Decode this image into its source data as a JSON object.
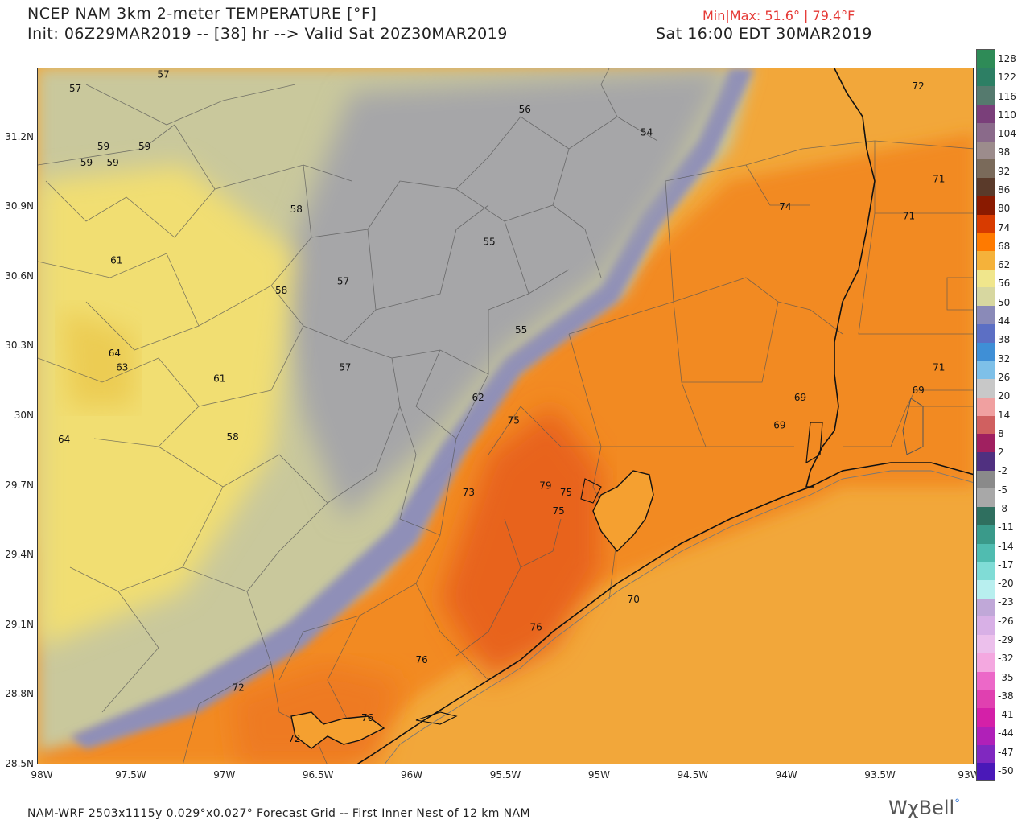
{
  "header": {
    "title": "NCEP NAM 3km 2-meter TEMPERATURE [°F]",
    "init_line": "Init: 06Z29MAR2019 -- [38] hr --> Valid Sat 20Z30MAR2019",
    "local_time": "Sat 16:00 EDT 30MAR2019",
    "minmax": "Min|Max: 51.6° | 79.4°F"
  },
  "footer": "NAM-WRF 2503x1115y 0.029°x0.027° Forecast Grid -- First Inner Nest of 12 km NAM",
  "brand": "WχBell",
  "map": {
    "lon_labels": [
      "98W",
      "97.5W",
      "97W",
      "96.5W",
      "96W",
      "95.5W",
      "95W",
      "94.5W",
      "94W",
      "93.5W",
      "93W"
    ],
    "lat_labels": [
      "31.2N",
      "30.9N",
      "30.6N",
      "30.3N",
      "30N",
      "29.7N",
      "29.4N",
      "29.1N",
      "28.8N",
      "28.5N"
    ],
    "temp_labels": [
      {
        "v": "57",
        "lon": -97.8,
        "lat": 31.4
      },
      {
        "v": "57",
        "lon": -97.33,
        "lat": 31.46
      },
      {
        "v": "56",
        "lon": -95.4,
        "lat": 31.31
      },
      {
        "v": "54",
        "lon": -94.75,
        "lat": 31.21
      },
      {
        "v": "72",
        "lon": -93.3,
        "lat": 31.41
      },
      {
        "v": "59",
        "lon": -97.65,
        "lat": 31.15
      },
      {
        "v": "59",
        "lon": -97.43,
        "lat": 31.15
      },
      {
        "v": "59",
        "lon": -97.74,
        "lat": 31.08
      },
      {
        "v": "59",
        "lon": -97.6,
        "lat": 31.08
      },
      {
        "v": "71",
        "lon": -93.19,
        "lat": 31.01
      },
      {
        "v": "58",
        "lon": -96.62,
        "lat": 30.88
      },
      {
        "v": "74",
        "lon": -94.01,
        "lat": 30.89
      },
      {
        "v": "71",
        "lon": -93.35,
        "lat": 30.85
      },
      {
        "v": "55",
        "lon": -95.59,
        "lat": 30.74
      },
      {
        "v": "61",
        "lon": -97.58,
        "lat": 30.66
      },
      {
        "v": "57",
        "lon": -96.37,
        "lat": 30.57
      },
      {
        "v": "58",
        "lon": -96.7,
        "lat": 30.53
      },
      {
        "v": "55",
        "lon": -95.42,
        "lat": 30.36
      },
      {
        "v": "64",
        "lon": -97.59,
        "lat": 30.26
      },
      {
        "v": "63",
        "lon": -97.55,
        "lat": 30.2
      },
      {
        "v": "57",
        "lon": -96.36,
        "lat": 30.2
      },
      {
        "v": "71",
        "lon": -93.19,
        "lat": 30.2
      },
      {
        "v": "61",
        "lon": -97.03,
        "lat": 30.15
      },
      {
        "v": "69",
        "lon": -93.3,
        "lat": 30.1
      },
      {
        "v": "62",
        "lon": -95.65,
        "lat": 30.07
      },
      {
        "v": "69",
        "lon": -93.93,
        "lat": 30.07
      },
      {
        "v": "75",
        "lon": -95.46,
        "lat": 29.97
      },
      {
        "v": "69",
        "lon": -94.04,
        "lat": 29.95
      },
      {
        "v": "64",
        "lon": -97.86,
        "lat": 29.89
      },
      {
        "v": "58",
        "lon": -96.96,
        "lat": 29.9
      },
      {
        "v": "73",
        "lon": -95.7,
        "lat": 29.66
      },
      {
        "v": "79",
        "lon": -95.29,
        "lat": 29.69
      },
      {
        "v": "75",
        "lon": -95.18,
        "lat": 29.66
      },
      {
        "v": "75",
        "lon": -95.22,
        "lat": 29.58
      },
      {
        "v": "70",
        "lon": -94.82,
        "lat": 29.2
      },
      {
        "v": "76",
        "lon": -95.34,
        "lat": 29.08
      },
      {
        "v": "76",
        "lon": -95.95,
        "lat": 28.94
      },
      {
        "v": "72",
        "lon": -96.93,
        "lat": 28.82
      },
      {
        "v": "76",
        "lon": -96.24,
        "lat": 28.69
      },
      {
        "v": "72",
        "lon": -96.63,
        "lat": 28.6
      }
    ]
  },
  "colorbar": {
    "labels": [
      "128",
      "122",
      "116",
      "110",
      "104",
      "98",
      "92",
      "86",
      "80",
      "74",
      "68",
      "62",
      "56",
      "50",
      "44",
      "38",
      "32",
      "26",
      "20",
      "14",
      "8",
      "2",
      "-2",
      "-5",
      "-8",
      "-11",
      "-14",
      "-17",
      "-20",
      "-23",
      "-26",
      "-29",
      "-32",
      "-35",
      "-38",
      "-41",
      "-44",
      "-47",
      "-50"
    ],
    "colors": [
      "#2e8b57",
      "#2d7f64",
      "#557a6e",
      "#7a3f7a",
      "#8a6a8a",
      "#9c8c8c",
      "#7a6a5a",
      "#5a3a2a",
      "#8a1a00",
      "#d83b00",
      "#ff7a00",
      "#f5b23a",
      "#f0e68c",
      "#d7d7a0",
      "#8a8ab8",
      "#5c6fc4",
      "#3f8fd6",
      "#7ec0e8",
      "#c8c8c8",
      "#f0a0a0",
      "#d06060",
      "#a02060",
      "#503080",
      "#8a8a8a",
      "#a8a8a8",
      "#2f6f5f",
      "#3a9a8a",
      "#50bcb0",
      "#80dcd6",
      "#b8efef",
      "#c0a8d8",
      "#d8b0e6",
      "#ecc0ec",
      "#f4a8e0",
      "#ec68c8",
      "#e040b0",
      "#d420a8",
      "#b020b8",
      "#8028c0",
      "#4a18b8"
    ]
  }
}
